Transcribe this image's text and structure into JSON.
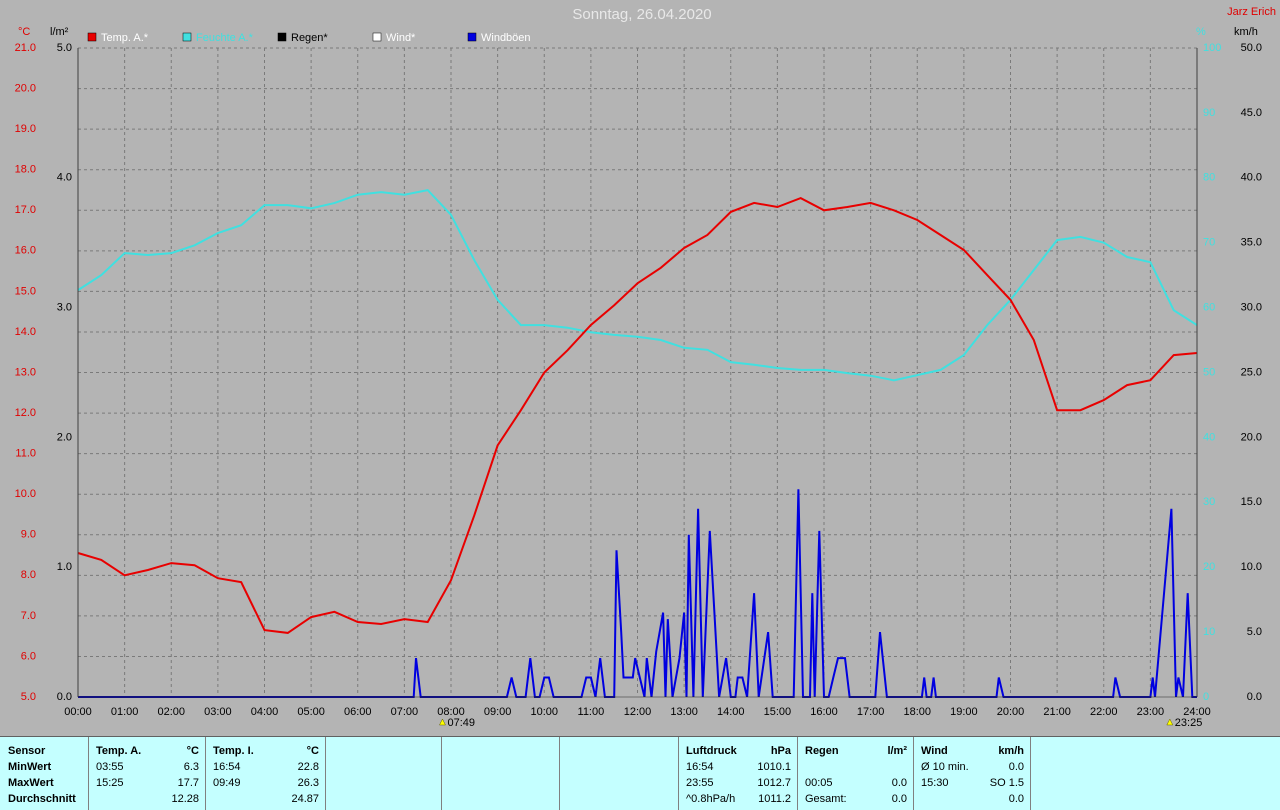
{
  "chart_data": {
    "type": "line",
    "title": "Sonntag, 26.04.2020",
    "author": "Jarz Erich",
    "xlim": [
      0,
      24
    ],
    "xticks": [
      {
        "value": 0,
        "label": "00:00"
      },
      {
        "value": 1,
        "label": "01:00"
      },
      {
        "value": 2,
        "label": "02:00"
      },
      {
        "value": 3,
        "label": "03:00"
      },
      {
        "value": 4,
        "label": "04:00"
      },
      {
        "value": 5,
        "label": "05:00"
      },
      {
        "value": 6,
        "label": "06:00"
      },
      {
        "value": 7,
        "label": "07:00"
      },
      {
        "value": 8,
        "label": "08:00"
      },
      {
        "value": 9,
        "label": "09:00"
      },
      {
        "value": 10,
        "label": "10:00"
      },
      {
        "value": 11,
        "label": "11:00"
      },
      {
        "value": 12,
        "label": "12:00"
      },
      {
        "value": 13,
        "label": "13:00"
      },
      {
        "value": 14,
        "label": "14:00"
      },
      {
        "value": 15,
        "label": "15:00"
      },
      {
        "value": 16,
        "label": "16:00"
      },
      {
        "value": 17,
        "label": "17:00"
      },
      {
        "value": 18,
        "label": "18:00"
      },
      {
        "value": 19,
        "label": "19:00"
      },
      {
        "value": 20,
        "label": "20:00"
      },
      {
        "value": 21,
        "label": "21:00"
      },
      {
        "value": 22,
        "label": "22:00"
      },
      {
        "value": 23,
        "label": "23:00"
      },
      {
        "value": 24,
        "label": "24:00"
      }
    ],
    "ylabel": "°C",
    "ylim": [
      5,
      21
    ],
    "ycolor": "#e00000",
    "yticks": [
      {
        "value": 5,
        "label": "5.0"
      },
      {
        "value": 6,
        "label": "6.0"
      },
      {
        "value": 7,
        "label": "7.0"
      },
      {
        "value": 8,
        "label": "8.0"
      },
      {
        "value": 9,
        "label": "9.0"
      },
      {
        "value": 10,
        "label": "10.0"
      },
      {
        "value": 11,
        "label": "11.0"
      },
      {
        "value": 12,
        "label": "12.0"
      },
      {
        "value": 13,
        "label": "13.0"
      },
      {
        "value": 14,
        "label": "14.0"
      },
      {
        "value": 15,
        "label": "15.0"
      },
      {
        "value": 16,
        "label": "16.0"
      },
      {
        "value": 17,
        "label": "17.0"
      },
      {
        "value": 18,
        "label": "18.0"
      },
      {
        "value": 19,
        "label": "19.0"
      },
      {
        "value": 20,
        "label": "20.0"
      },
      {
        "value": 21,
        "label": "21.0"
      }
    ],
    "y3label": "l/m²",
    "y3lim": [
      0,
      5
    ],
    "y3color": "#000000",
    "y3ticks": [
      {
        "value": 0,
        "label": "0.0"
      },
      {
        "value": 1,
        "label": "1.0"
      },
      {
        "value": 2,
        "label": "2.0"
      },
      {
        "value": 3,
        "label": "3.0"
      },
      {
        "value": 4,
        "label": "4.0"
      },
      {
        "value": 5,
        "label": "5.0"
      }
    ],
    "y4label": "%",
    "y4lim": [
      0,
      100
    ],
    "y4color": "#40e0e0",
    "y4ticks": [
      0,
      10,
      20,
      30,
      40,
      50,
      60,
      70,
      80,
      90,
      100
    ],
    "y2label": "km/h",
    "y2lim": [
      0,
      50
    ],
    "y2color": "#000000",
    "y2ticks": [
      {
        "value": 0,
        "label": "0.0"
      },
      {
        "value": 5,
        "label": "5.0"
      },
      {
        "value": 10,
        "label": "10.0"
      },
      {
        "value": 15,
        "label": "15.0"
      },
      {
        "value": 20,
        "label": "20.0"
      },
      {
        "value": 25,
        "label": "25.0"
      },
      {
        "value": 30,
        "label": "30.0"
      },
      {
        "value": 35,
        "label": "35.0"
      },
      {
        "value": 40,
        "label": "40.0"
      },
      {
        "value": 45,
        "label": "45.0"
      },
      {
        "value": 50,
        "label": "50.0"
      }
    ],
    "grid": true,
    "series": [
      {
        "name": "Temp. A.*",
        "color": "#e80000",
        "legend_text_color": "#ffffff",
        "axis": "y",
        "x": [
          0,
          0.5,
          1,
          1.5,
          2,
          2.5,
          3,
          3.5,
          4,
          4.5,
          5,
          5.5,
          6,
          6.5,
          7,
          7.5,
          8,
          8.5,
          9,
          9.5,
          10,
          10.5,
          11,
          11.5,
          12,
          12.5,
          13,
          13.5,
          14,
          14.5,
          15,
          15.5,
          16,
          16.5,
          17,
          17.5,
          18,
          18.5,
          19,
          19.5,
          20,
          20.5,
          21,
          21.5,
          22,
          22.5,
          23,
          23.5,
          24
        ],
        "values": [
          8.55,
          8.38,
          8.0,
          8.13,
          8.3,
          8.25,
          7.93,
          7.83,
          6.65,
          6.58,
          6.97,
          7.1,
          6.85,
          6.8,
          6.92,
          6.85,
          7.88,
          9.48,
          11.2,
          12.07,
          13.0,
          13.55,
          14.17,
          14.66,
          15.2,
          15.58,
          16.07,
          16.39,
          16.96,
          17.18,
          17.08,
          17.3,
          17.0,
          17.08,
          17.18,
          17.0,
          16.76,
          16.39,
          16.02,
          15.4,
          14.79,
          13.8,
          12.07,
          12.07,
          12.32,
          12.69,
          12.81,
          13.43,
          13.48
        ]
      },
      {
        "name": "Feuchte A.*",
        "color": "#40e0e0",
        "legend_text_color": "#40e0e0",
        "axis": "y4",
        "x": [
          0,
          0.5,
          1,
          1.5,
          2,
          2.5,
          3,
          3.5,
          4,
          4.5,
          5,
          5.5,
          6,
          6.5,
          7,
          7.5,
          8,
          8.5,
          9,
          9.5,
          10,
          10.5,
          11,
          11.5,
          12,
          12.5,
          13,
          13.5,
          14,
          14.5,
          15,
          15.5,
          16,
          16.5,
          17,
          17.5,
          18,
          18.5,
          19,
          19.5,
          20,
          20.5,
          21,
          21.5,
          22,
          22.5,
          23,
          23.5,
          24
        ],
        "values": [
          62.7,
          65.0,
          68.4,
          68.1,
          68.4,
          69.6,
          71.5,
          72.7,
          75.8,
          75.8,
          75.3,
          76.1,
          77.4,
          77.8,
          77.4,
          78.1,
          74.3,
          67.3,
          61.2,
          57.3,
          57.3,
          56.9,
          56.2,
          55.8,
          55.5,
          55.0,
          53.8,
          53.5,
          51.6,
          51.2,
          50.7,
          50.4,
          50.4,
          49.9,
          49.5,
          48.8,
          49.6,
          50.4,
          52.7,
          57.3,
          61.2,
          65.8,
          70.4,
          70.9,
          70.0,
          67.8,
          67.0,
          59.6,
          57.3
        ]
      },
      {
        "name": "Regen*",
        "color": "#000000",
        "legend_text_color": "#000000",
        "axis": "y3",
        "x": [
          0,
          24
        ],
        "values": [
          0,
          0
        ]
      },
      {
        "name": "Wind*",
        "color": "#ffffff",
        "legend_text_color": "#ffffff",
        "axis": "y2",
        "x": [
          0,
          24
        ],
        "values": [
          0,
          0
        ]
      },
      {
        "name": "Windböen",
        "color": "#0000e0",
        "legend_text_color": "#ffffff",
        "axis": "y2",
        "x": [
          0,
          7.2,
          7.25,
          7.35,
          9.2,
          9.3,
          9.4,
          9.6,
          9.7,
          9.8,
          9.9,
          10.0,
          10.1,
          10.2,
          10.8,
          10.9,
          11.0,
          11.1,
          11.2,
          11.3,
          11.5,
          11.55,
          11.65,
          11.7,
          11.9,
          11.95,
          12.05,
          12.15,
          12.2,
          12.3,
          12.4,
          12.55,
          12.6,
          12.65,
          12.75,
          12.9,
          13.0,
          13.05,
          13.1,
          13.2,
          13.3,
          13.4,
          13.55,
          13.65,
          13.75,
          13.9,
          14.0,
          14.1,
          14.15,
          14.25,
          14.35,
          14.5,
          14.6,
          14.8,
          14.9,
          15.35,
          15.45,
          15.55,
          15.7,
          15.75,
          15.8,
          15.9,
          16.0,
          16.1,
          16.2,
          16.3,
          16.45,
          16.55,
          17.1,
          17.2,
          17.35,
          18.1,
          18.15,
          18.2,
          18.3,
          18.35,
          18.4,
          19.7,
          19.75,
          19.85,
          22.2,
          22.25,
          22.35,
          23.0,
          23.05,
          23.1,
          23.45,
          23.55,
          23.6,
          23.7,
          23.8,
          23.9,
          24
        ],
        "values": [
          0,
          0,
          3,
          0,
          0,
          1.5,
          0,
          0,
          3,
          0,
          0,
          1.5,
          1.5,
          0,
          0,
          1.5,
          1.5,
          0,
          3,
          0,
          0,
          11.3,
          5,
          1.5,
          1.5,
          3,
          1.5,
          0,
          3,
          0,
          3.5,
          6.5,
          0,
          6,
          0,
          3,
          6.5,
          0,
          12.5,
          0,
          14.5,
          0,
          12.8,
          6.5,
          0,
          3,
          0,
          0,
          1.5,
          1.5,
          0,
          8,
          0,
          5,
          0,
          0,
          16,
          0,
          0,
          8,
          0,
          12.8,
          0,
          0,
          1.5,
          3,
          3,
          0,
          0,
          5,
          0,
          0,
          1.5,
          0,
          0,
          1.5,
          0,
          0,
          1.5,
          0,
          0,
          1.5,
          0,
          0,
          1.5,
          0,
          14.5,
          0,
          1.5,
          0,
          8,
          0,
          0
        ]
      }
    ],
    "markers": [
      {
        "value": 7.8167,
        "label": "07:49"
      },
      {
        "value": 23.4167,
        "label": "23:25"
      }
    ]
  },
  "table": {
    "groups": [
      {
        "header": {
          "left": "Sensor"
        },
        "rows": [
          {
            "left": "MinWert"
          },
          {
            "left": "MaxWert"
          },
          {
            "left": "Durchschnitt"
          }
        ]
      },
      {
        "header": {
          "left": "Temp. A.",
          "right": "°C"
        },
        "rows": [
          {
            "left": "03:55",
            "right": "6.3"
          },
          {
            "left": "15:25",
            "right": "17.7"
          },
          {
            "right": "12.28"
          }
        ]
      },
      {
        "header": {
          "left": "Temp. I.",
          "right": "°C"
        },
        "rows": [
          {
            "left": "16:54",
            "right": "22.8"
          },
          {
            "left": "09:49",
            "right": "26.3"
          },
          {
            "right": "24.87"
          }
        ]
      },
      {
        "header": {
          "left": "Luftdruck",
          "right": "hPa"
        },
        "rows": [
          {
            "left": "16:54",
            "right": "1010.1"
          },
          {
            "left": "23:55",
            "right": "1012.7"
          },
          {
            "left": "^0.8hPa/h",
            "right": "1011.2"
          }
        ]
      },
      {
        "header": {
          "left": "Regen",
          "right": "l/m²"
        },
        "rows": [
          null,
          {
            "left": "00:05",
            "right": "0.0"
          },
          {
            "left": "Gesamt:",
            "right": "0.0"
          }
        ]
      },
      {
        "header": {
          "left": "Wind",
          "right": "km/h"
        },
        "rows": [
          {
            "left": "Ø 10 min.",
            "right": "0.0"
          },
          {
            "left": "15:30",
            "right": "SO 1.5"
          },
          {
            "right": "0.0"
          }
        ]
      }
    ]
  }
}
